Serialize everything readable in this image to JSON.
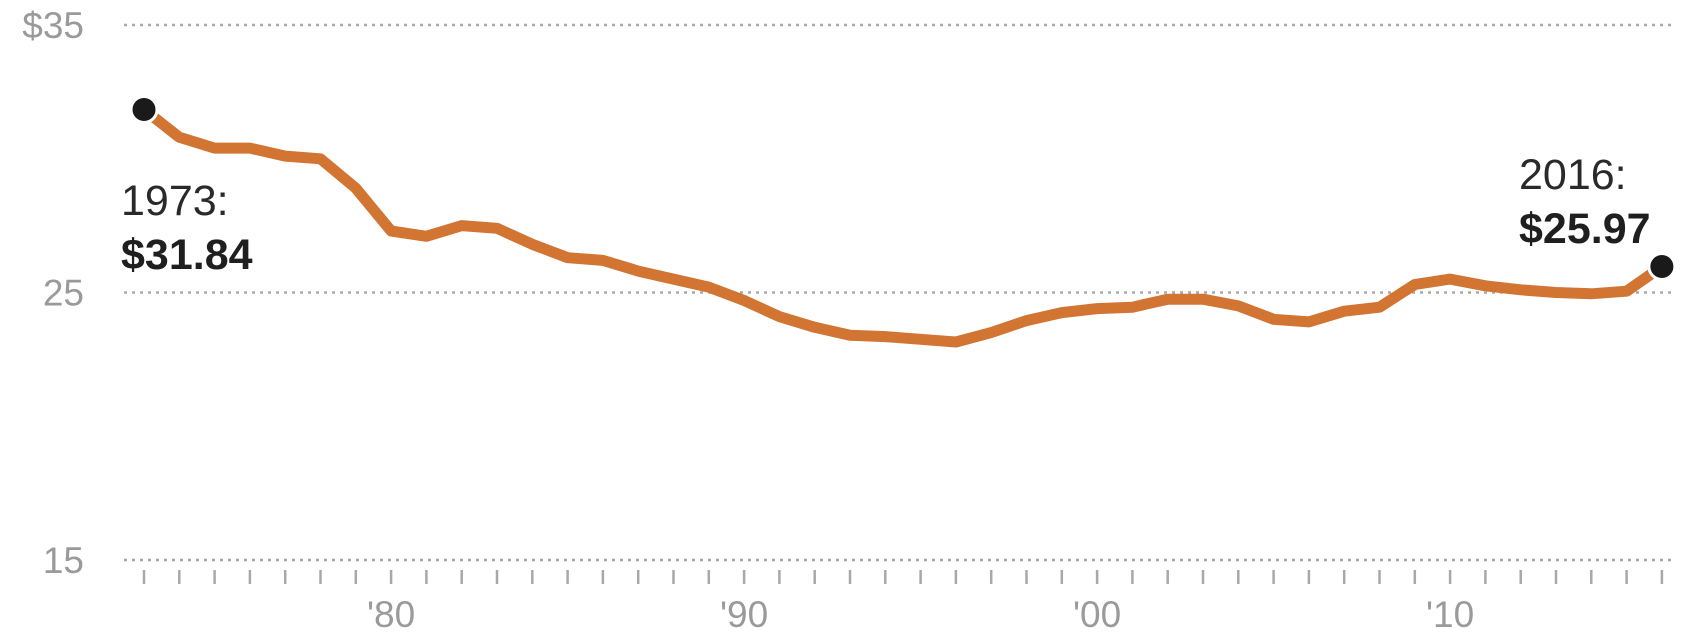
{
  "chart_data": {
    "type": "line",
    "title": "",
    "xlabel": "",
    "ylabel": "",
    "xlim": [
      1972,
      2018
    ],
    "ylim": [
      15,
      35
    ],
    "grid": true,
    "y_ticks": [
      {
        "value": 35,
        "label": "$35"
      },
      {
        "value": 25,
        "label": "25"
      },
      {
        "value": 15,
        "label": "15"
      }
    ],
    "x_ticks": [
      {
        "value": 1980,
        "label": "'80"
      },
      {
        "value": 1990,
        "label": "'90"
      },
      {
        "value": 2000,
        "label": "'00"
      },
      {
        "value": 2010,
        "label": "'10"
      }
    ],
    "x_minor_tick_range": [
      1973,
      2018
    ],
    "color": "#D27432",
    "marker_color": "#1a1a1a",
    "series": [
      {
        "x": [
          1973,
          1974,
          1975,
          1976,
          1977,
          1978,
          1979,
          1980,
          1981,
          1982,
          1983,
          1984,
          1985,
          1986,
          1987,
          1988,
          1989,
          1990,
          1991,
          1992,
          1993,
          1994,
          1995,
          1996,
          1997,
          1998,
          1999,
          2000,
          2001,
          2002,
          2003,
          2004,
          2005,
          2006,
          2007,
          2008,
          2009,
          2010,
          2011,
          2012,
          2013,
          2014,
          2015,
          2016
        ],
        "values": [
          31.84,
          30.8,
          30.4,
          30.4,
          30.1,
          30.0,
          28.9,
          27.3,
          27.1,
          27.5,
          27.4,
          26.8,
          26.3,
          26.2,
          25.8,
          25.5,
          25.2,
          24.7,
          24.1,
          23.7,
          23.4,
          23.35,
          23.25,
          23.15,
          23.5,
          23.95,
          24.25,
          24.4,
          24.45,
          24.75,
          24.75,
          24.5,
          24.0,
          23.9,
          24.3,
          24.45,
          25.3,
          25.5,
          25.25,
          25.1,
          25.0,
          24.95,
          25.05,
          25.97
        ]
      }
    ],
    "annotations": [
      {
        "year_label": "1973:",
        "value_label": "$31.84",
        "x": 1973,
        "y": 31.84
      },
      {
        "year_label": "2016:",
        "value_label": "$25.97",
        "x": 2016,
        "y": 25.97
      }
    ]
  }
}
